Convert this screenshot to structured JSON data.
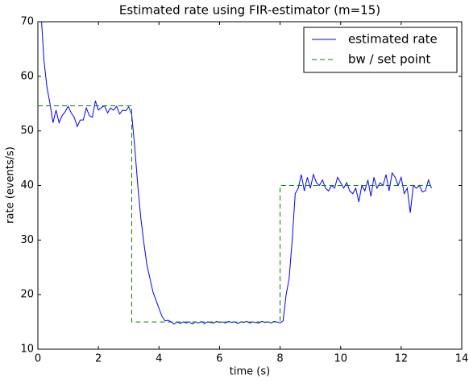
{
  "chart_data": {
    "type": "line",
    "title": "Estimated rate using FIR-estimator (m=15)",
    "xlabel": "time (s)",
    "ylabel": "rate (events/s)",
    "xlim": [
      0,
      14
    ],
    "xticks": [
      0,
      2,
      4,
      6,
      8,
      10,
      12,
      14
    ],
    "ylim": [
      10,
      70
    ],
    "yticks": [
      10,
      20,
      30,
      40,
      50,
      60,
      70
    ],
    "grid": false,
    "legend": "upper right",
    "series": [
      {
        "name": "estimated rate",
        "color": "#0000ff",
        "style": "solid",
        "x": [
          0.1,
          0.2,
          0.3,
          0.4,
          0.5,
          0.6,
          0.7,
          0.8,
          0.9,
          1.0,
          1.1,
          1.2,
          1.3,
          1.4,
          1.5,
          1.6,
          1.7,
          1.8,
          1.9,
          2.0,
          2.1,
          2.2,
          2.3,
          2.4,
          2.5,
          2.6,
          2.7,
          2.8,
          2.9,
          3.0,
          3.1,
          3.2,
          3.3,
          3.4,
          3.5,
          3.6,
          3.7,
          3.8,
          3.9,
          4.0,
          4.1,
          4.2,
          4.3,
          4.4,
          4.5,
          4.6,
          4.7,
          4.8,
          4.9,
          5.0,
          5.1,
          5.2,
          5.3,
          5.4,
          5.5,
          5.6,
          5.7,
          5.8,
          5.9,
          6.0,
          6.1,
          6.2,
          6.3,
          6.4,
          6.5,
          6.6,
          6.7,
          6.8,
          6.9,
          7.0,
          7.1,
          7.2,
          7.3,
          7.4,
          7.5,
          7.6,
          7.7,
          7.8,
          7.9,
          8.0,
          8.1,
          8.2,
          8.3,
          8.4,
          8.5,
          8.6,
          8.7,
          8.8,
          8.9,
          9.0,
          9.1,
          9.2,
          9.3,
          9.4,
          9.5,
          9.6,
          9.7,
          9.8,
          9.9,
          10.0,
          10.1,
          10.2,
          10.3,
          10.4,
          10.5,
          10.6,
          10.7,
          10.8,
          10.9,
          11.0,
          11.1,
          11.2,
          11.3,
          11.4,
          11.5,
          11.6,
          11.7,
          11.8,
          11.9,
          12.0,
          12.1,
          12.2,
          12.3,
          12.4,
          12.5,
          12.6,
          12.7,
          12.8,
          12.9,
          13.0
        ],
        "values": [
          72,
          63,
          58,
          55,
          51.5,
          53.8,
          51.5,
          52.8,
          53.5,
          54.5,
          53.3,
          52.5,
          50.8,
          52,
          52,
          54.2,
          52.8,
          52.5,
          55.5,
          53.8,
          54.3,
          54.6,
          53.3,
          54.2,
          53.8,
          54.5,
          53.1,
          53.8,
          53.7,
          54.4,
          53,
          47,
          40,
          34,
          29.5,
          25.5,
          23,
          20.5,
          19,
          17.5,
          16,
          15.2,
          15.3,
          15,
          14.6,
          15,
          14.7,
          15,
          14.8,
          15,
          14.6,
          15,
          14.8,
          15.1,
          14.7,
          15,
          14.9,
          14.8,
          15.1,
          14.9,
          15,
          14.8,
          15.1,
          14.9,
          15,
          14.7,
          15,
          14.9,
          15.1,
          14.8,
          15,
          14.9,
          14.8,
          15.1,
          14.9,
          15,
          14.8,
          15.1,
          15,
          14.8,
          15.2,
          20,
          23,
          30,
          38.5,
          39.5,
          42,
          39,
          41.5,
          39.5,
          42,
          40.5,
          40,
          41,
          39.5,
          39,
          40,
          39.5,
          41.5,
          40.5,
          39.5,
          40.5,
          39,
          38.5,
          39.5,
          37,
          40,
          39,
          41,
          38,
          41.5,
          39.5,
          40.5,
          40,
          42,
          39,
          42.3,
          41.5,
          40,
          41.5,
          38.5,
          39.5,
          35,
          40,
          39.5,
          40,
          38.8,
          39,
          41,
          39.5
        ]
      },
      {
        "name": "bw / set point",
        "color": "#008000",
        "style": "dashed",
        "x": [
          0,
          3.1,
          3.1,
          8,
          8,
          13
        ],
        "values": [
          54.6,
          54.6,
          15,
          15,
          40,
          40
        ]
      }
    ]
  }
}
